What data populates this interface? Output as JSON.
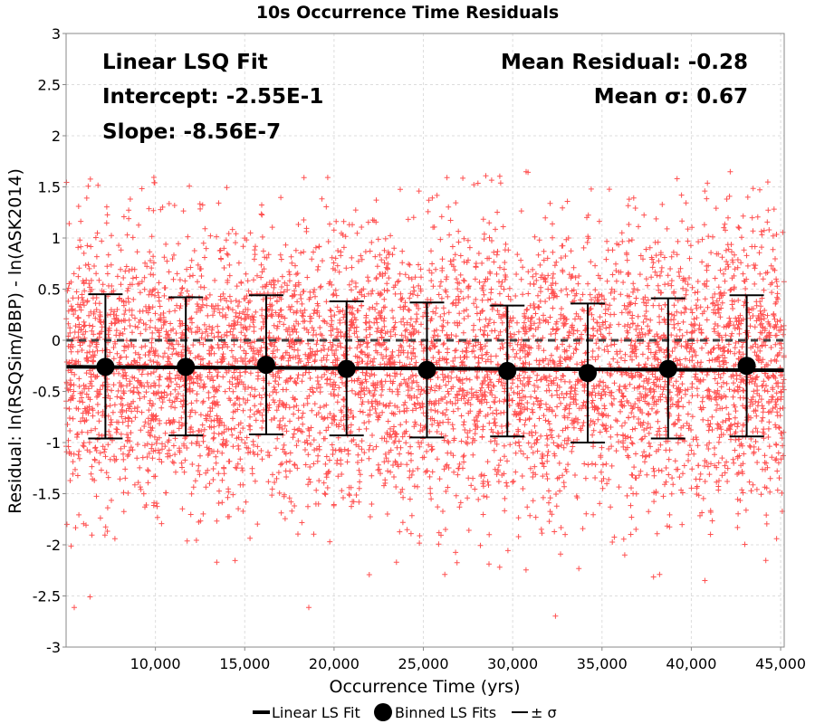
{
  "chart_data": {
    "type": "scatter",
    "title": "10s Occurrence Time Residuals",
    "xlabel": "Occurrence Time (yrs)",
    "ylabel": "Residual: ln(RSQSim/BBP) - ln(ASK2014)",
    "xlim": [
      5000,
      45200
    ],
    "ylim": [
      -3,
      3
    ],
    "x_ticks": [
      10000,
      15000,
      20000,
      25000,
      30000,
      35000,
      40000,
      45000
    ],
    "x_tick_labels": [
      "10,000",
      "15,000",
      "20,000",
      "25,000",
      "30,000",
      "35,000",
      "40,000",
      "45,000"
    ],
    "y_ticks": [
      -3,
      -2.5,
      -2,
      -1.5,
      -1,
      -0.5,
      0,
      0.5,
      1,
      1.5,
      2,
      2.5,
      3
    ],
    "y_tick_labels": [
      "-3",
      "-2.5",
      "-2",
      "-1.5",
      "-1",
      "-0.5",
      "0",
      "0.5",
      "1",
      "1.5",
      "2",
      "2.5",
      "3"
    ],
    "grid": true,
    "legend_position": "bottom",
    "colors": {
      "scatter": "#ff5050",
      "fit": "#000000",
      "zero_line": "#404040",
      "grid": "#dddddd"
    },
    "annotations": {
      "fit_name": "Linear LSQ Fit",
      "intercept": "Intercept: -2.55E-1",
      "slope": "Slope: -8.56E-7",
      "mean_residual": "Mean Residual: -0.28",
      "mean_sigma": "Mean σ: 0.67"
    },
    "linear_fit": {
      "name": "Linear LS Fit",
      "intercept": -0.255,
      "slope": -8.56e-07
    },
    "binned_fits": {
      "name": "Binned LS Fits",
      "x": [
        7200,
        11700,
        16200,
        20700,
        25200,
        29700,
        34200,
        38700,
        43100
      ],
      "mean": [
        -0.26,
        -0.26,
        -0.24,
        -0.28,
        -0.29,
        -0.3,
        -0.32,
        -0.28,
        -0.25
      ],
      "upper": [
        0.45,
        0.42,
        0.44,
        0.38,
        0.37,
        0.34,
        0.36,
        0.41,
        0.44
      ],
      "lower": [
        -0.96,
        -0.93,
        -0.92,
        -0.93,
        -0.95,
        -0.94,
        -1.0,
        -0.96,
        -0.94
      ]
    },
    "sigma_bars": {
      "name": "± σ"
    },
    "scatter_points": {
      "name": "Residuals",
      "marker": "+",
      "count_shown": 9000,
      "x_range": [
        5000,
        45200
      ],
      "center": -0.28,
      "sigma": 0.67
    },
    "legend": [
      "Linear LS Fit",
      "Binned LS Fits",
      "± σ"
    ]
  }
}
